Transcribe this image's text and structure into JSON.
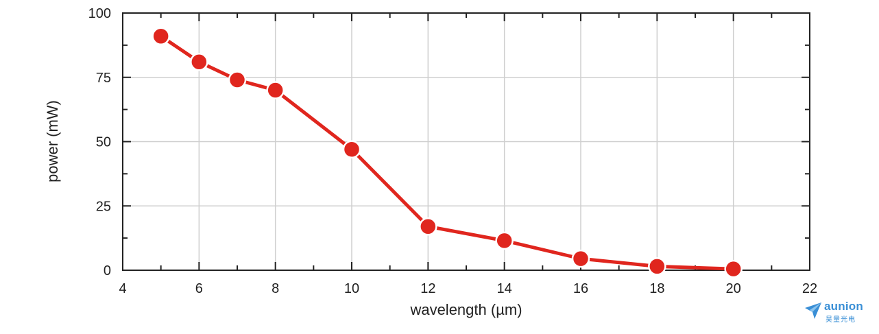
{
  "chart_data": {
    "type": "line",
    "title": "",
    "xlabel": "wavelength (µm)",
    "ylabel": "power (mW)",
    "xlim": [
      4,
      22
    ],
    "ylim": [
      0,
      100
    ],
    "x_ticks": [
      4,
      6,
      8,
      10,
      12,
      14,
      16,
      18,
      20,
      22
    ],
    "x_tick_labels": [
      "4",
      "6",
      "8",
      "10",
      "12",
      "14",
      "16",
      "18",
      "20",
      "22"
    ],
    "y_ticks": [
      0,
      25,
      50,
      75,
      100
    ],
    "y_tick_labels": [
      "0",
      "25",
      "50",
      "75",
      "100"
    ],
    "grid": true,
    "series": [
      {
        "x": [
          5,
          6,
          7,
          8,
          10,
          12,
          14,
          16,
          18,
          20
        ],
        "y": [
          91,
          81,
          74,
          70,
          47,
          17,
          11.5,
          4.5,
          1.5,
          0.5
        ],
        "color": "#e0261e"
      }
    ]
  },
  "logo": {
    "word": "aunion",
    "sub": "昊量光电",
    "color": "#3a8fd6"
  }
}
